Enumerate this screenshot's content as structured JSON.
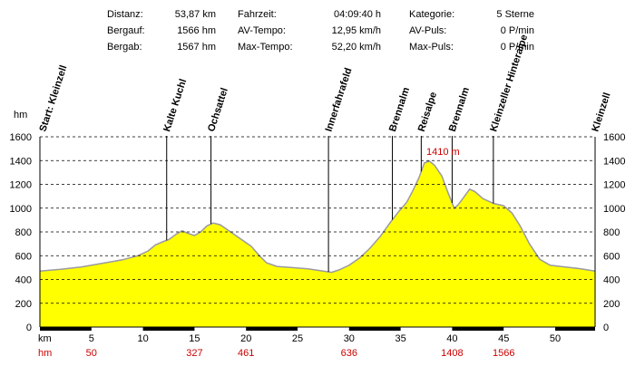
{
  "stats": [
    {
      "label": "Distanz:",
      "value": "53,87 km"
    },
    {
      "label": "Bergauf:",
      "value": "1566 hm"
    },
    {
      "label": "Bergab:",
      "value": "1567 hm"
    },
    {
      "label": "Fahrzeit:",
      "value": "04:09:40 h"
    },
    {
      "label": "AV-Tempo:",
      "value": "12,95 km/h"
    },
    {
      "label": "Max-Tempo:",
      "value": "52,20 km/h"
    },
    {
      "label": "Kategorie:",
      "value": "5 Sterne"
    },
    {
      "label": "AV-Puls:",
      "value": "0 P/min"
    },
    {
      "label": "Max-Puls:",
      "value": "0 P/min"
    }
  ],
  "colors": {
    "fill": "#ffff00",
    "outline": "#9a9aa0",
    "accent": "#cc0000",
    "grid": "#000000"
  },
  "chart_data": {
    "type": "area",
    "ylabel": "hm",
    "xlabel": "km",
    "xlim": [
      0,
      53.87
    ],
    "ylim": [
      0,
      1600
    ],
    "yticks": [
      0,
      200,
      400,
      600,
      800,
      1000,
      1200,
      1400,
      1600
    ],
    "xticks": [
      5,
      10,
      15,
      20,
      25,
      30,
      35,
      40,
      45,
      50
    ],
    "grid": true,
    "series": [
      {
        "points": [
          [
            0,
            470
          ],
          [
            2,
            485
          ],
          [
            4,
            505
          ],
          [
            6,
            535
          ],
          [
            8,
            565
          ],
          [
            9.5,
            600
          ],
          [
            10.5,
            640
          ],
          [
            11.2,
            690
          ],
          [
            12,
            720
          ],
          [
            12.5,
            735
          ],
          [
            13.2,
            780
          ],
          [
            13.8,
            810
          ],
          [
            14.3,
            790
          ],
          [
            15,
            770
          ],
          [
            15.6,
            800
          ],
          [
            16.2,
            850
          ],
          [
            16.8,
            875
          ],
          [
            17.5,
            860
          ],
          [
            18.5,
            800
          ],
          [
            19.5,
            740
          ],
          [
            20.5,
            680
          ],
          [
            21.3,
            600
          ],
          [
            22,
            540
          ],
          [
            23,
            510
          ],
          [
            24.5,
            500
          ],
          [
            26,
            490
          ],
          [
            27.5,
            470
          ],
          [
            28.3,
            460
          ],
          [
            29,
            480
          ],
          [
            30,
            520
          ],
          [
            31,
            580
          ],
          [
            32,
            660
          ],
          [
            33,
            760
          ],
          [
            34,
            880
          ],
          [
            34.8,
            970
          ],
          [
            35.6,
            1050
          ],
          [
            36.2,
            1150
          ],
          [
            36.8,
            1260
          ],
          [
            37.3,
            1380
          ],
          [
            37.8,
            1395
          ],
          [
            38.3,
            1360
          ],
          [
            39,
            1270
          ],
          [
            39.6,
            1130
          ],
          [
            40.2,
            1000
          ],
          [
            40.6,
            1030
          ],
          [
            41.2,
            1100
          ],
          [
            41.7,
            1160
          ],
          [
            42.2,
            1140
          ],
          [
            43,
            1080
          ],
          [
            44,
            1040
          ],
          [
            45,
            1020
          ],
          [
            45.8,
            960
          ],
          [
            46.6,
            850
          ],
          [
            47.5,
            700
          ],
          [
            48.5,
            570
          ],
          [
            49.5,
            520
          ],
          [
            51,
            505
          ],
          [
            52.5,
            490
          ],
          [
            53.87,
            470
          ]
        ]
      }
    ],
    "annotations": [
      {
        "x": 37.8,
        "y": 1400,
        "text": "1410 m"
      }
    ],
    "waypoints": [
      {
        "name": "Start: Kleinzell",
        "km": 0
      },
      {
        "name": "Kalte Kuchl",
        "km": 12.3
      },
      {
        "name": "Ochsattel",
        "km": 16.6
      },
      {
        "name": "Innerfahrafeld",
        "km": 28.0
      },
      {
        "name": "Brennalm",
        "km": 34.2
      },
      {
        "name": "Reisalpe",
        "km": 37.0
      },
      {
        "name": "Brennalm",
        "km": 40.0
      },
      {
        "name": "Kleinzeller Hinteralpe",
        "km": 44.0
      },
      {
        "name": "Kleinzell",
        "km": 53.87
      }
    ],
    "cumulative_hm": {
      "label": "hm",
      "values": [
        {
          "km": 5,
          "value": "50"
        },
        {
          "km": 15,
          "value": "327"
        },
        {
          "km": 20,
          "value": "461"
        },
        {
          "km": 30,
          "value": "636"
        },
        {
          "km": 40,
          "value": "1408"
        },
        {
          "km": 45,
          "value": "1566"
        }
      ]
    }
  }
}
